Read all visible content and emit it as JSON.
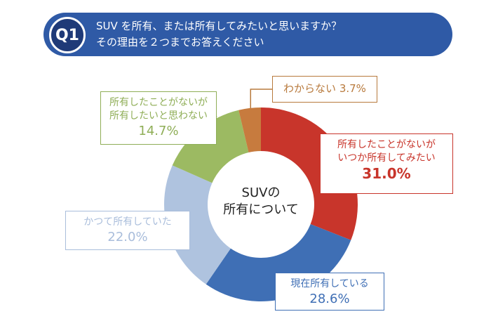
{
  "question": {
    "badge": "Q1",
    "line1": "SUV を所有、または所有してみたいと思いますか？",
    "line2": "その理由を２つまでお答えください"
  },
  "chart_data": {
    "type": "pie",
    "variant": "donut",
    "title": "",
    "center_label": [
      "SUVの",
      "所有について"
    ],
    "slices": [
      {
        "label_lines": [
          "所有したことがないが",
          "いつか所有してみたい"
        ],
        "value": 31.0,
        "value_text": "31.0%",
        "color": "#c8352b"
      },
      {
        "label_lines": [
          "現在所有している"
        ],
        "value": 28.6,
        "value_text": "28.6%",
        "color": "#3f6fb5"
      },
      {
        "label_lines": [
          "かつて所有していた"
        ],
        "value": 22.0,
        "value_text": "22.0%",
        "color": "#afc3df"
      },
      {
        "label_lines": [
          "所有したことがないが",
          "所有したいと思わない"
        ],
        "value": 14.7,
        "value_text": "14.7%",
        "color": "#9cba62"
      },
      {
        "label_lines": [
          "わからない"
        ],
        "value": 3.7,
        "value_text": "3.7%",
        "color": "#c77b3e"
      }
    ],
    "start": "top",
    "direction": "clockwise",
    "legend": "callout-labels"
  },
  "colors": {
    "banner": "#2f5aa6",
    "badge": "#1f3a78",
    "label_text": [
      "#c8352b",
      "#3f6fb5",
      "#a9bddb",
      "#8fae57",
      "#b87a3d"
    ]
  }
}
